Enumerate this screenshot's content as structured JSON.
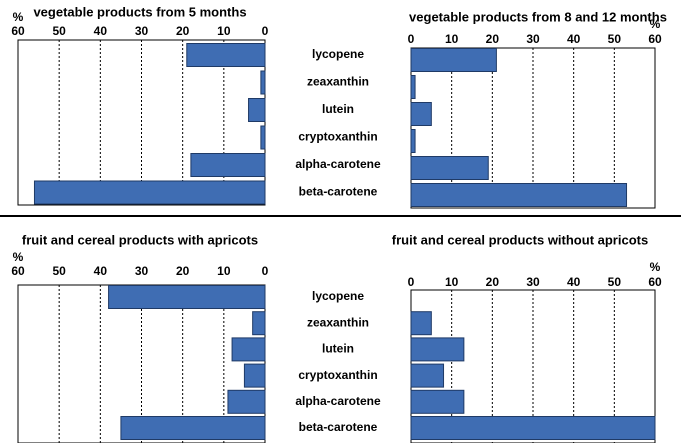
{
  "chart_data": [
    {
      "type": "bar",
      "categories": [
        "lycopene",
        "zeaxanthin",
        "lutein",
        "cryptoxanthin",
        "alpha-carotene",
        "beta-carotene"
      ],
      "series": [
        {
          "name": "vegetable products from 5 months",
          "color": "#3f6db3",
          "values": [
            19,
            1,
            4,
            1,
            18,
            56
          ],
          "reversed": true,
          "axis_label": "%",
          "xlim": [
            0,
            60
          ],
          "xticks": [
            0,
            10,
            20,
            30,
            40,
            50,
            60
          ]
        },
        {
          "name": "vegetable products from 8 and 12 months",
          "color": "#3f6db3",
          "values": [
            21,
            1,
            5,
            1,
            19,
            53
          ],
          "reversed": false,
          "axis_label": "%",
          "xlim": [
            0,
            60
          ],
          "xticks": [
            0,
            10,
            20,
            30,
            40,
            50,
            60
          ]
        }
      ]
    },
    {
      "type": "bar",
      "categories": [
        "lycopene",
        "zeaxanthin",
        "lutein",
        "cryptoxanthin",
        "alpha-carotene",
        "beta-carotene"
      ],
      "series": [
        {
          "name": "fruit and cereal products with apricots",
          "color": "#3f6db3",
          "values": [
            38,
            3,
            8,
            5,
            9,
            35
          ],
          "reversed": true,
          "axis_label": "%",
          "xlim": [
            0,
            60
          ],
          "xticks": [
            0,
            10,
            20,
            30,
            40,
            50,
            60
          ]
        },
        {
          "name": "fruit and cereal products without apricots",
          "color": "#3f6db3",
          "values": [
            0,
            5,
            13,
            8,
            13,
            60
          ],
          "reversed": false,
          "axis_label": "%",
          "xlim": [
            0,
            60
          ],
          "xticks": [
            0,
            10,
            20,
            30,
            40,
            50,
            60
          ]
        }
      ]
    }
  ]
}
